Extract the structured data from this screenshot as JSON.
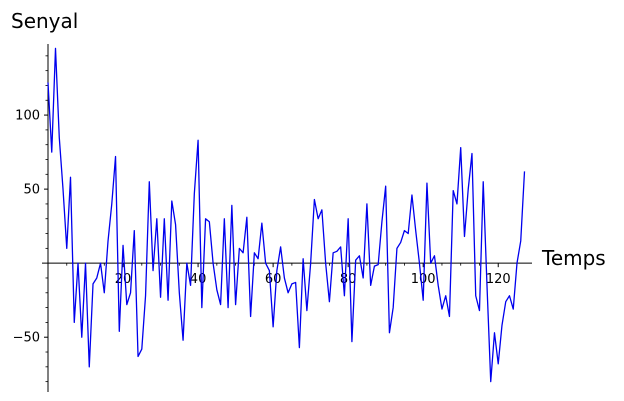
{
  "chart_data": {
    "type": "line",
    "xlabel": "Temps",
    "ylabel": "Senyal",
    "xlim": [
      0,
      129
    ],
    "ylim": [
      -87,
      148
    ],
    "x_ticks": [
      20,
      40,
      60,
      80,
      100,
      120
    ],
    "y_ticks": [
      -50,
      50,
      100
    ],
    "x_minor_step": 5,
    "y_minor_step": 10,
    "grid": false,
    "line_color": "#0000ee",
    "series": [
      {
        "x": [
          0,
          1,
          2,
          3,
          4,
          5,
          6,
          7,
          8,
          9,
          10,
          11,
          12,
          13,
          14,
          15,
          16,
          17,
          18,
          19,
          20,
          21,
          22,
          23,
          24,
          25,
          26,
          27,
          28,
          29,
          30,
          31,
          32,
          33,
          34,
          35,
          36,
          37,
          38,
          39,
          40,
          41,
          42,
          43,
          44,
          45,
          46,
          47,
          48,
          49,
          50,
          51,
          52,
          53,
          54,
          55,
          56,
          57,
          58,
          59,
          60,
          61,
          62,
          63,
          64,
          65,
          66,
          67,
          68,
          69,
          70,
          71,
          72,
          73,
          74,
          75,
          76,
          77,
          78,
          79,
          80,
          81,
          82,
          83,
          84,
          85,
          86,
          87,
          88,
          89,
          90,
          91,
          92,
          93,
          94,
          95,
          96,
          97,
          98,
          99,
          100,
          101,
          102,
          103,
          104,
          105,
          106,
          107,
          108,
          109,
          110,
          111,
          112,
          113,
          114,
          115,
          116,
          117,
          118,
          119,
          120,
          121,
          122,
          123,
          124,
          125,
          126,
          127
        ],
        "y": [
          122,
          75,
          145,
          85,
          50,
          10,
          58,
          -40,
          0,
          -50,
          0,
          -70,
          -14,
          -10,
          0,
          -20,
          15,
          40,
          72,
          -46,
          12,
          -28,
          -20,
          22,
          -63,
          -58,
          -22,
          55,
          -5,
          30,
          -23,
          30,
          -25,
          42,
          26,
          -20,
          -52,
          0,
          -15,
          47,
          83,
          -30,
          30,
          28,
          0,
          -18,
          -28,
          30,
          -30,
          39,
          -28,
          10,
          7,
          31,
          -36,
          7,
          3,
          27,
          0,
          -5,
          -43,
          -5,
          11,
          -10,
          -20,
          -14,
          -13,
          -57,
          3,
          -32,
          0,
          43,
          30,
          36,
          0,
          -26,
          7,
          8,
          11,
          -22,
          30,
          -53,
          2,
          5,
          -10,
          40,
          -15,
          -2,
          -1,
          28,
          52,
          -47,
          -30,
          10,
          14,
          22,
          20,
          46,
          22,
          0,
          -25,
          54,
          0,
          5,
          -15,
          -31,
          -22,
          -36,
          49,
          40,
          78,
          18,
          50,
          74,
          -22,
          -32,
          55,
          -15,
          -80,
          -47,
          -68,
          -42,
          -26,
          -22,
          -31,
          0,
          15,
          62
        ]
      }
    ]
  }
}
